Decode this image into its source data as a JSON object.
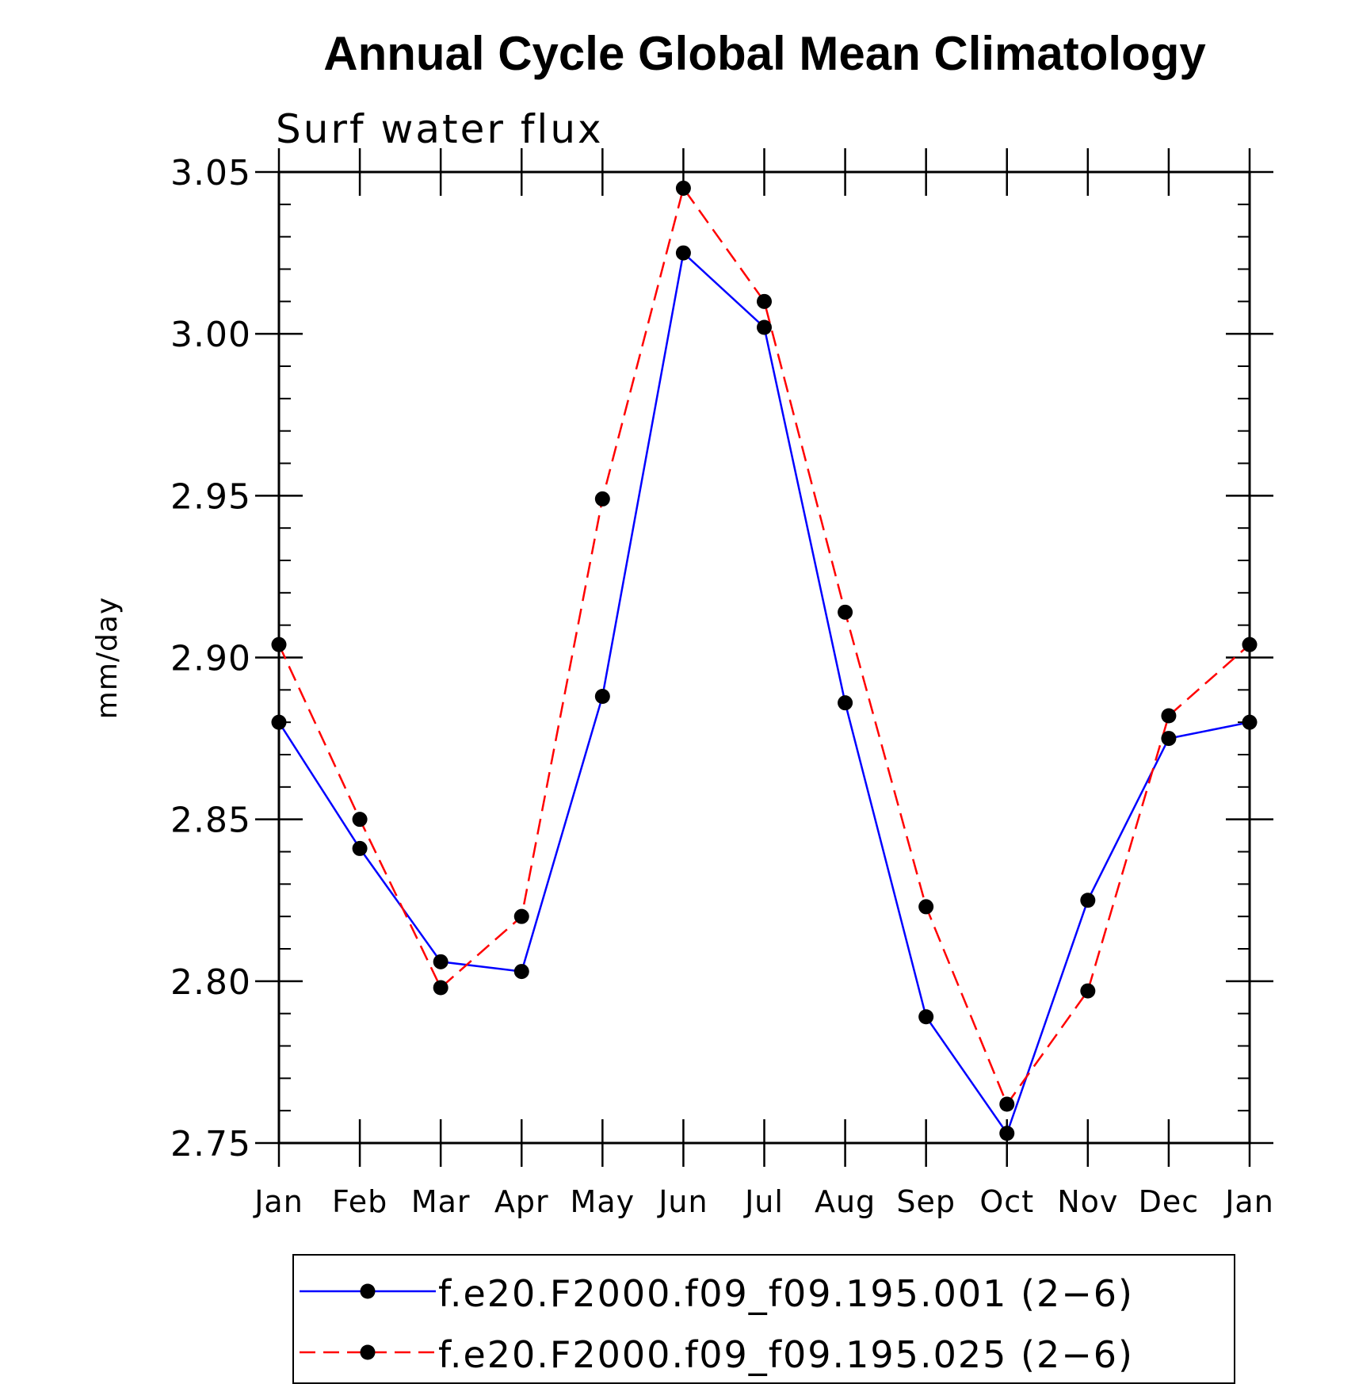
{
  "chart_data": {
    "type": "line",
    "title": "Annual Cycle Global Mean Climatology",
    "subtitle": "Surf water flux",
    "xlabel": "",
    "ylabel": "mm/day",
    "ylim": [
      2.75,
      3.05
    ],
    "yticks": [
      "3.05",
      "3.00",
      "2.95",
      "2.90",
      "2.85",
      "2.80",
      "2.75"
    ],
    "categories": [
      "Jan",
      "Feb",
      "Mar",
      "Apr",
      "May",
      "Jun",
      "Jul",
      "Aug",
      "Sep",
      "Oct",
      "Nov",
      "Dec",
      "Jan"
    ],
    "grid": false,
    "legend_position": "bottom",
    "series": [
      {
        "name": "f.e20.F2000.f09_f09.195.001 (2−6)",
        "color": "#0000ff",
        "line_style": "solid",
        "marker": "filled-circle",
        "values": [
          2.88,
          2.841,
          2.806,
          2.803,
          2.888,
          3.025,
          3.002,
          2.886,
          2.789,
          2.753,
          2.825,
          2.875,
          2.88
        ]
      },
      {
        "name": "f.e20.F2000.f09_f09.195.025 (2−6)",
        "color": "#ff0000",
        "line_style": "dashed",
        "marker": "filled-circle",
        "values": [
          2.904,
          2.85,
          2.798,
          2.82,
          2.949,
          3.045,
          3.01,
          2.914,
          2.823,
          2.762,
          2.797,
          2.882,
          2.904
        ]
      }
    ]
  }
}
